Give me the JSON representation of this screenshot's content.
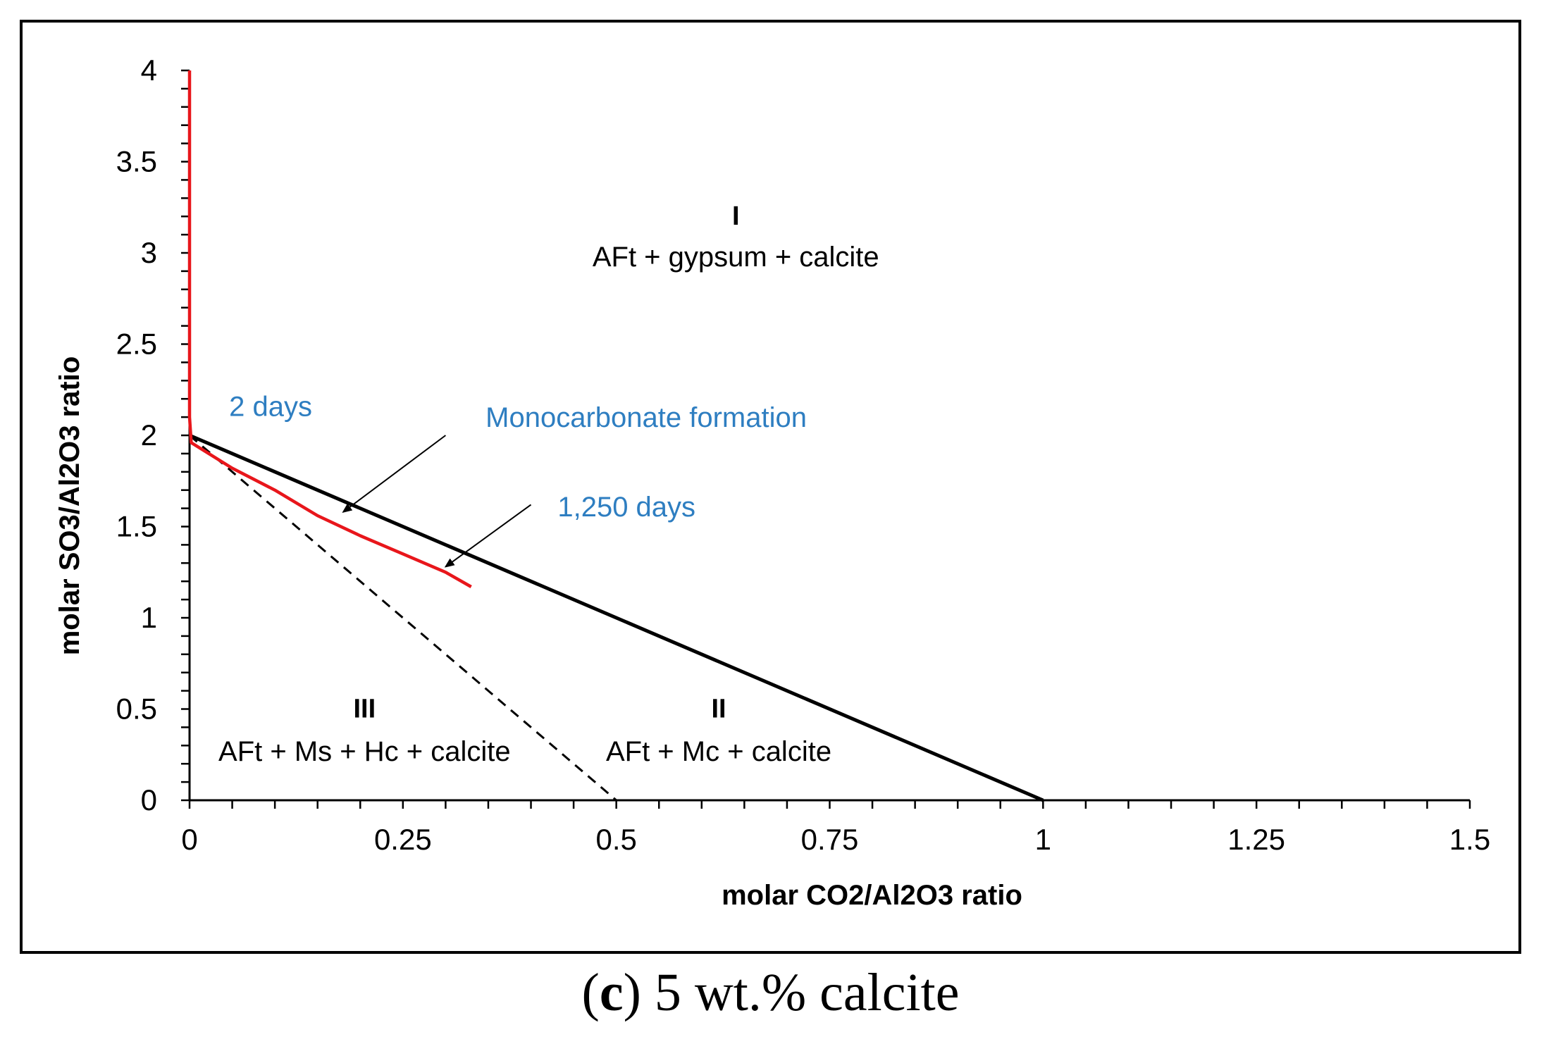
{
  "chart_data": {
    "type": "line",
    "xlabel": "molar CO2/Al2O3 ratio",
    "ylabel": "molar SO3/Al2O3 ratio",
    "xlim": [
      0,
      1.5
    ],
    "ylim": [
      0,
      4
    ],
    "x_ticks": [
      "0",
      "0.25",
      "0.5",
      "0.75",
      "1",
      "1.25",
      "1.5"
    ],
    "y_ticks": [
      "0",
      "0.5",
      "1",
      "1.5",
      "2",
      "2.5",
      "3",
      "3.5",
      "4"
    ],
    "grid": false,
    "legend": "none",
    "series": [
      {
        "style": "solid",
        "color": "#000000",
        "points": [
          [
            0,
            2
          ],
          [
            1,
            0
          ]
        ]
      },
      {
        "style": "dashed",
        "color": "#000000",
        "points": [
          [
            0,
            2
          ],
          [
            0.5,
            0
          ]
        ]
      },
      {
        "style": "solid",
        "color": "#e8161b",
        "points": [
          [
            0,
            4
          ],
          [
            0,
            3.5
          ],
          [
            0,
            3.0
          ],
          [
            0,
            2.5
          ],
          [
            0,
            2.1
          ],
          [
            0.002,
            1.96
          ],
          [
            0.05,
            1.82
          ],
          [
            0.1,
            1.7
          ],
          [
            0.15,
            1.56
          ],
          [
            0.2,
            1.45
          ],
          [
            0.25,
            1.35
          ],
          [
            0.3,
            1.25
          ],
          [
            0.33,
            1.17
          ]
        ]
      }
    ],
    "regions": [
      {
        "id": "I",
        "text": "AFt + gypsum + calcite",
        "x": 0.64,
        "y_id": 3.2,
        "y_text": 2.98
      },
      {
        "id": "II",
        "text": "AFt + Mc + calcite",
        "x": 0.62,
        "y_id": 0.5,
        "y_text": 0.27
      },
      {
        "id": "III",
        "text": "AFt + Ms + Hc + calcite",
        "x": 0.205,
        "y_id": 0.5,
        "y_text": 0.27
      }
    ],
    "annotations": [
      {
        "text": "2 days",
        "x": 0.095,
        "y": 2.16,
        "color": "#2e7ec1"
      },
      {
        "text": "Monocarbonate formation",
        "x": 0.535,
        "y": 2.1,
        "color": "#2e7ec1",
        "arrow_from": [
          0.3,
          2.0
        ],
        "arrow_to": [
          0.18,
          1.58
        ]
      },
      {
        "text": "1,250 days",
        "x": 0.512,
        "y": 1.61,
        "color": "#2e7ec1",
        "arrow_from": [
          0.4,
          1.62
        ],
        "arrow_to": [
          0.3,
          1.28
        ]
      }
    ]
  },
  "caption": {
    "letter": "c",
    "text": "5 wt.% calcite"
  }
}
